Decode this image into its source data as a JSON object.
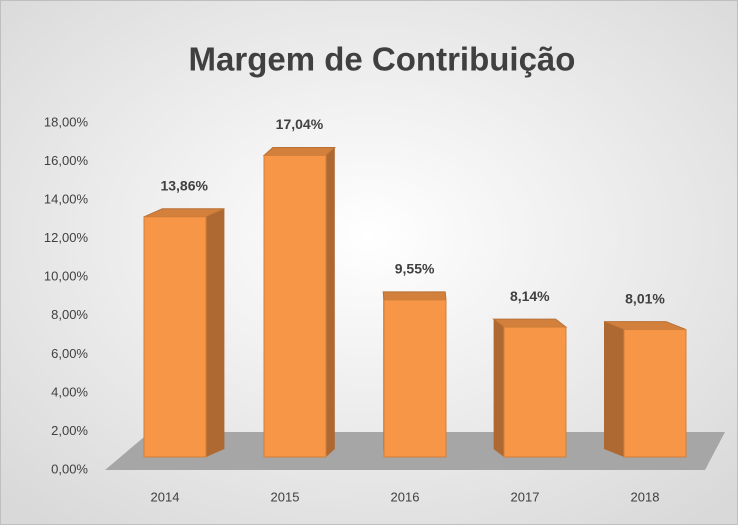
{
  "chart_data": {
    "type": "bar3d",
    "title": "Margem de Contribuição",
    "categories": [
      "2014",
      "2015",
      "2016",
      "2017",
      "2018"
    ],
    "values": [
      13.86,
      17.04,
      9.55,
      8.14,
      8.01
    ],
    "value_labels": [
      "13,86%",
      "17,04%",
      "9,55%",
      "8,14%",
      "8,01%"
    ],
    "color": "#f79646",
    "ylim": [
      0,
      18
    ],
    "yticks": [
      {
        "value": 0,
        "label": "0,00%"
      },
      {
        "value": 2,
        "label": "2,00%"
      },
      {
        "value": 4,
        "label": "4,00%"
      },
      {
        "value": 6,
        "label": "6,00%"
      },
      {
        "value": 8,
        "label": "8,00%"
      },
      {
        "value": 10,
        "label": "10,00%"
      },
      {
        "value": 12,
        "label": "12,00%"
      },
      {
        "value": 14,
        "label": "14,00%"
      },
      {
        "value": 16,
        "label": "16,00%"
      },
      {
        "value": 18,
        "label": "18,00%"
      }
    ]
  }
}
